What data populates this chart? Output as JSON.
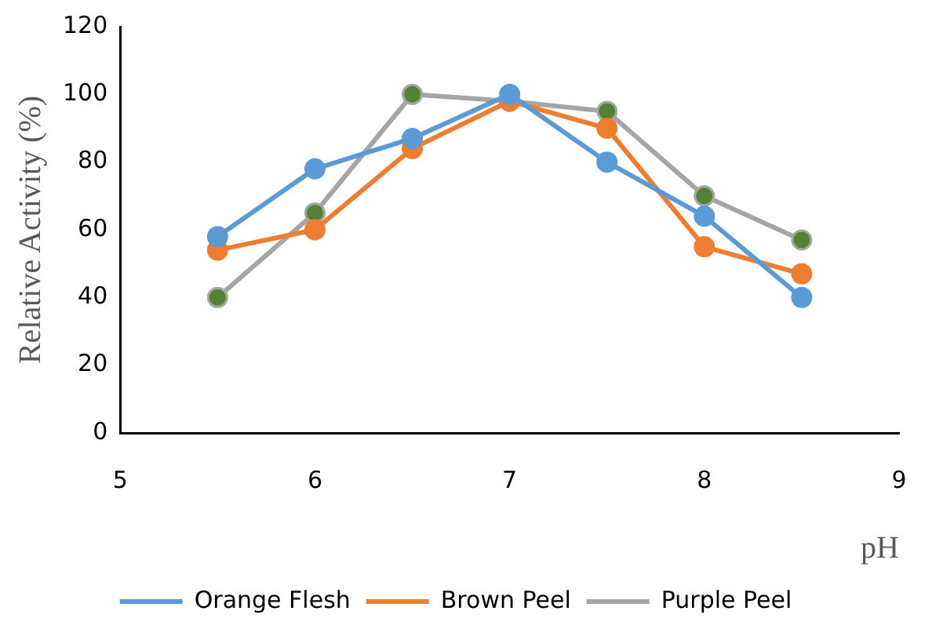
{
  "chart_data": {
    "type": "line",
    "xlabel": "pH",
    "ylabel": "Relative Activity (%)",
    "x": [
      5.5,
      6,
      6.5,
      7,
      7.5,
      8,
      8.5
    ],
    "series": [
      {
        "name": "Orange Flesh",
        "color": "#5b9bd5",
        "values": [
          58,
          78,
          87,
          100,
          80,
          64,
          40
        ]
      },
      {
        "name": "Brown Peel",
        "color": "#ed7d31",
        "values": [
          54,
          60,
          84,
          98,
          90,
          55,
          47
        ]
      },
      {
        "name": "Purple Peel",
        "color": "#a5a5a5",
        "colors": [
          "#548235",
          "#548235",
          "#548235",
          "#548235",
          "#548235",
          "#548235",
          "#548235"
        ],
        "values": [
          40,
          65,
          100,
          98,
          95,
          70,
          57
        ]
      }
    ],
    "xlim": [
      5,
      9
    ],
    "xticks": [
      5,
      6,
      7,
      8,
      9
    ],
    "ylim": [
      0,
      120
    ],
    "yticks": [
      0,
      20,
      40,
      60,
      80,
      100,
      120
    ],
    "grid": false,
    "legend": "bottom",
    "marker": "circle",
    "line_style": "solid"
  }
}
